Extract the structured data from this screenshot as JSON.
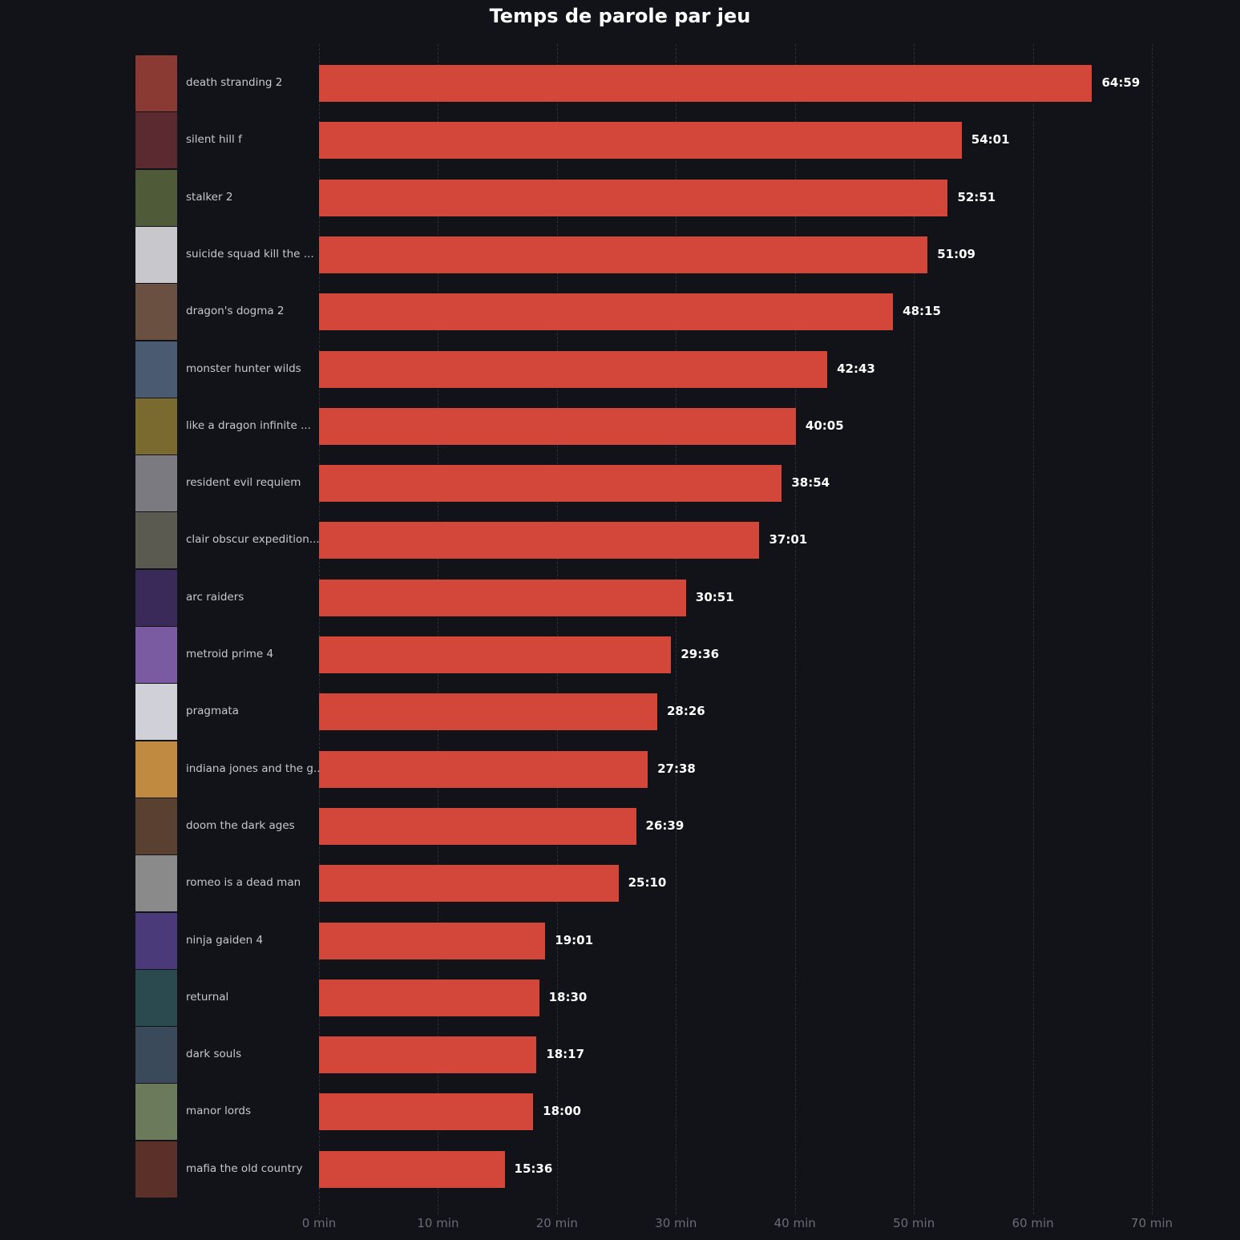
{
  "chart_data": {
    "type": "bar",
    "orientation": "horizontal",
    "title": "Temps de parole par jeu",
    "xlabel": "",
    "ylabel": "",
    "xlim": [
      0,
      70
    ],
    "x_ticks": [
      "0 min",
      "10 min",
      "20 min",
      "30 min",
      "40 min",
      "50 min",
      "60 min",
      "70 min"
    ],
    "grid": "vertical dashed",
    "bar_color": "#d3473a",
    "background": "#121318",
    "categories": [
      "death stranding 2",
      "silent hill f",
      "stalker 2",
      "suicide squad kill the ...",
      "dragon's dogma 2",
      "monster hunter wilds",
      "like a dragon infinite ...",
      "resident evil requiem",
      "clair obscur expedition...",
      "arc raiders",
      "metroid prime 4",
      "pragmata",
      "indiana jones and the g...",
      "doom the dark ages",
      "romeo is a dead man",
      "ninja gaiden 4",
      "returnal",
      "dark souls",
      "manor lords",
      "mafia the old country"
    ],
    "labels": [
      "64:59",
      "54:01",
      "52:51",
      "51:09",
      "48:15",
      "42:43",
      "40:05",
      "38:54",
      "37:01",
      "30:51",
      "29:36",
      "28:26",
      "27:38",
      "26:39",
      "25:10",
      "19:01",
      "18:30",
      "18:17",
      "18:00",
      "15:36"
    ],
    "values": [
      64.98,
      54.02,
      52.85,
      51.15,
      48.25,
      42.72,
      40.08,
      38.9,
      37.02,
      30.85,
      29.6,
      28.43,
      27.63,
      26.65,
      25.17,
      19.02,
      18.5,
      18.28,
      18.0,
      15.6
    ],
    "thumb_colors": [
      "#8a3a32",
      "#5a2a30",
      "#4e5a38",
      "#c8c8cc",
      "#6a5040",
      "#4a5a70",
      "#7a6a30",
      "#7a7a80",
      "#5a5a50",
      "#3a2a5a",
      "#7a5aa0",
      "#d0d0d8",
      "#c08a40",
      "#5a4030",
      "#8a8a8a",
      "#4a3a7a",
      "#2a4a50",
      "#3a4a5a",
      "#6a7a5a",
      "#5a3028"
    ]
  }
}
